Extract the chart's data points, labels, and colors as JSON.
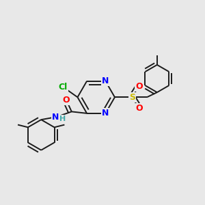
{
  "background_color": "#e8e8e8",
  "bond_color": "#1a1a1a",
  "atom_colors": {
    "N": "#0000ff",
    "O": "#ff0000",
    "Cl": "#00aa00",
    "S": "#ccbb00",
    "C": "#1a1a1a",
    "H": "#44aaaa"
  },
  "figsize": [
    3.0,
    3.0
  ],
  "dpi": 100,
  "lw": 1.4
}
